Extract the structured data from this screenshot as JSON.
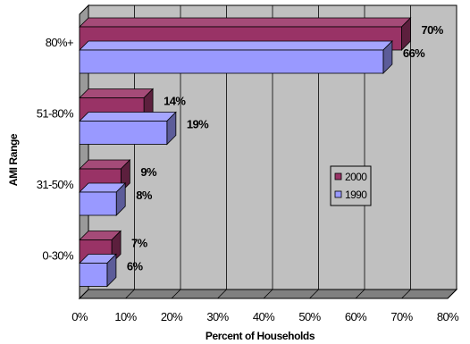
{
  "chart_data": {
    "type": "bar",
    "orientation": "horizontal",
    "three_d": true,
    "title": "",
    "xlabel": "Percent of Households",
    "ylabel": "AMI Range",
    "categories": [
      "0-30%",
      "31-50%",
      "51-80%",
      "80%+"
    ],
    "series": [
      {
        "name": "2000",
        "values": [
          7,
          9,
          14,
          70
        ],
        "labels": [
          "7%",
          "9%",
          "14%",
          "70%"
        ],
        "color": "#993366"
      },
      {
        "name": "1990",
        "values": [
          6,
          8,
          19,
          66
        ],
        "labels": [
          "6%",
          "8%",
          "19%",
          "66%"
        ],
        "color": "#9999ff"
      }
    ],
    "xlim": [
      0,
      80
    ],
    "xticks": [
      "0%",
      "10%",
      "20%",
      "30%",
      "40%",
      "50%",
      "60%",
      "70%",
      "80%"
    ],
    "grid": true,
    "legend": {
      "position": "center-right",
      "order": [
        "2000",
        "1990"
      ]
    },
    "wall_color": "#c0c0c0"
  }
}
